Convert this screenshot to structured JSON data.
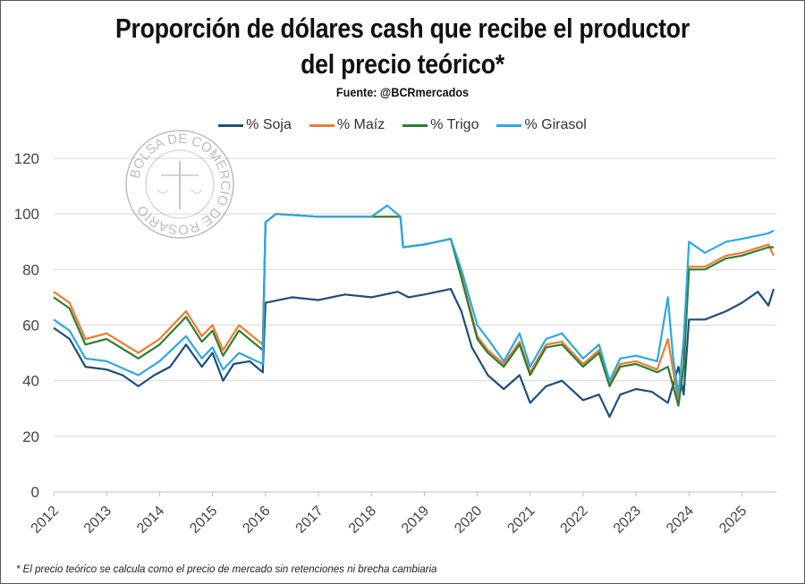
{
  "title_line1": "Proporción de dólares cash que recibe el productor",
  "title_line2": "del precio teórico*",
  "source": "Fuente: @BCRmercados",
  "footnote": "* El precio teórico se calcula como el precio de mercado sin retenciones ni brecha cambiaria",
  "logo_text": "BOLSA DE COMERCIO DE ROSARIO",
  "chart_data": {
    "type": "line",
    "title": "Proporción de dólares cash que recibe el productor del precio teórico*",
    "xlabel": "",
    "ylabel": "",
    "xlim": [
      2012,
      2025.65
    ],
    "ylim": [
      0,
      120
    ],
    "yticks": [
      0,
      20,
      40,
      60,
      80,
      100,
      120
    ],
    "xticks": [
      "2012",
      "2013",
      "2014",
      "2015",
      "2016",
      "2017",
      "2018",
      "2019",
      "2020",
      "2021",
      "2022",
      "2023",
      "2024",
      "2025"
    ],
    "grid": true,
    "legend": "top",
    "series": [
      {
        "name": "% Soja",
        "color": "#1f4e79",
        "points": [
          [
            2012,
            59
          ],
          [
            2012.3,
            55
          ],
          [
            2012.6,
            45
          ],
          [
            2013,
            44
          ],
          [
            2013.3,
            42
          ],
          [
            2013.6,
            38
          ],
          [
            2013.9,
            42
          ],
          [
            2014.2,
            45
          ],
          [
            2014.5,
            53
          ],
          [
            2014.8,
            45
          ],
          [
            2015,
            50
          ],
          [
            2015.2,
            40
          ],
          [
            2015.4,
            46
          ],
          [
            2015.7,
            47
          ],
          [
            2015.95,
            43
          ],
          [
            2016,
            68
          ],
          [
            2016.5,
            70
          ],
          [
            2017,
            69
          ],
          [
            2017.5,
            71
          ],
          [
            2018,
            70
          ],
          [
            2018.5,
            72
          ],
          [
            2018.7,
            70
          ],
          [
            2019,
            71
          ],
          [
            2019.5,
            73
          ],
          [
            2019.7,
            65
          ],
          [
            2019.9,
            52
          ],
          [
            2020.2,
            42
          ],
          [
            2020.5,
            37
          ],
          [
            2020.8,
            42
          ],
          [
            2021,
            32
          ],
          [
            2021.3,
            38
          ],
          [
            2021.6,
            40
          ],
          [
            2022,
            33
          ],
          [
            2022.3,
            35
          ],
          [
            2022.5,
            27
          ],
          [
            2022.7,
            35
          ],
          [
            2023,
            37
          ],
          [
            2023.3,
            36
          ],
          [
            2023.6,
            32
          ],
          [
            2023.8,
            45
          ],
          [
            2023.9,
            35
          ],
          [
            2024,
            62
          ],
          [
            2024.3,
            62
          ],
          [
            2024.7,
            65
          ],
          [
            2025,
            68
          ],
          [
            2025.3,
            72
          ],
          [
            2025.5,
            67
          ],
          [
            2025.6,
            73
          ]
        ]
      },
      {
        "name": "% Maíz",
        "color": "#ed7d31",
        "points": [
          [
            2012,
            72
          ],
          [
            2012.3,
            68
          ],
          [
            2012.6,
            55
          ],
          [
            2013,
            57
          ],
          [
            2013.6,
            50
          ],
          [
            2014,
            55
          ],
          [
            2014.5,
            65
          ],
          [
            2014.8,
            56
          ],
          [
            2015,
            60
          ],
          [
            2015.2,
            51
          ],
          [
            2015.5,
            60
          ],
          [
            2015.95,
            53
          ],
          [
            2016,
            97
          ],
          [
            2016.2,
            100
          ],
          [
            2017,
            99
          ],
          [
            2018,
            99
          ],
          [
            2018.55,
            99
          ],
          [
            2018.6,
            88
          ],
          [
            2019,
            89
          ],
          [
            2019.5,
            91
          ],
          [
            2019.7,
            78
          ],
          [
            2020,
            56
          ],
          [
            2020.2,
            51
          ],
          [
            2020.5,
            46
          ],
          [
            2020.8,
            54
          ],
          [
            2021,
            43
          ],
          [
            2021.3,
            53
          ],
          [
            2021.6,
            54
          ],
          [
            2022,
            46
          ],
          [
            2022.3,
            51
          ],
          [
            2022.5,
            39
          ],
          [
            2022.7,
            46
          ],
          [
            2023,
            47
          ],
          [
            2023.4,
            44
          ],
          [
            2023.6,
            55
          ],
          [
            2023.8,
            32
          ],
          [
            2023.9,
            46
          ],
          [
            2024,
            81
          ],
          [
            2024.3,
            81
          ],
          [
            2024.7,
            85
          ],
          [
            2025,
            86
          ],
          [
            2025.5,
            89
          ],
          [
            2025.6,
            85
          ]
        ]
      },
      {
        "name": "% Trigo",
        "color": "#2e7d32",
        "points": [
          [
            2012,
            70
          ],
          [
            2012.3,
            66
          ],
          [
            2012.6,
            53
          ],
          [
            2013,
            55
          ],
          [
            2013.6,
            48
          ],
          [
            2014,
            53
          ],
          [
            2014.5,
            63
          ],
          [
            2014.8,
            54
          ],
          [
            2015,
            58
          ],
          [
            2015.2,
            49
          ],
          [
            2015.5,
            58
          ],
          [
            2015.95,
            51
          ],
          [
            2016,
            97
          ],
          [
            2016.2,
            100
          ],
          [
            2017,
            99
          ],
          [
            2018,
            99
          ],
          [
            2018.55,
            99
          ],
          [
            2018.6,
            88
          ],
          [
            2019,
            89
          ],
          [
            2019.5,
            91
          ],
          [
            2019.7,
            77
          ],
          [
            2020,
            55
          ],
          [
            2020.2,
            50
          ],
          [
            2020.5,
            45
          ],
          [
            2020.8,
            53
          ],
          [
            2021,
            42
          ],
          [
            2021.3,
            52
          ],
          [
            2021.6,
            53
          ],
          [
            2022,
            45
          ],
          [
            2022.3,
            50
          ],
          [
            2022.5,
            38
          ],
          [
            2022.7,
            45
          ],
          [
            2023,
            46
          ],
          [
            2023.4,
            43
          ],
          [
            2023.6,
            45
          ],
          [
            2023.8,
            31
          ],
          [
            2023.9,
            45
          ],
          [
            2024,
            80
          ],
          [
            2024.3,
            80
          ],
          [
            2024.7,
            84
          ],
          [
            2025,
            85
          ],
          [
            2025.5,
            88
          ],
          [
            2025.6,
            88
          ]
        ]
      },
      {
        "name": "% Girasol",
        "color": "#2ea8de",
        "points": [
          [
            2012,
            62
          ],
          [
            2012.3,
            58
          ],
          [
            2012.6,
            48
          ],
          [
            2013,
            47
          ],
          [
            2013.6,
            42
          ],
          [
            2014,
            47
          ],
          [
            2014.5,
            56
          ],
          [
            2014.8,
            48
          ],
          [
            2015,
            52
          ],
          [
            2015.2,
            44
          ],
          [
            2015.5,
            50
          ],
          [
            2015.95,
            46
          ],
          [
            2016,
            97
          ],
          [
            2016.2,
            100
          ],
          [
            2017,
            99
          ],
          [
            2018,
            99
          ],
          [
            2018.3,
            103
          ],
          [
            2018.55,
            99
          ],
          [
            2018.6,
            88
          ],
          [
            2019,
            89
          ],
          [
            2019.5,
            91
          ],
          [
            2019.7,
            80
          ],
          [
            2020,
            60
          ],
          [
            2020.2,
            55
          ],
          [
            2020.5,
            47
          ],
          [
            2020.8,
            57
          ],
          [
            2021,
            45
          ],
          [
            2021.3,
            55
          ],
          [
            2021.6,
            57
          ],
          [
            2022,
            48
          ],
          [
            2022.3,
            53
          ],
          [
            2022.5,
            40
          ],
          [
            2022.7,
            48
          ],
          [
            2023,
            49
          ],
          [
            2023.4,
            47
          ],
          [
            2023.6,
            70
          ],
          [
            2023.7,
            48
          ],
          [
            2023.8,
            35
          ],
          [
            2023.9,
            55
          ],
          [
            2024,
            90
          ],
          [
            2024.3,
            86
          ],
          [
            2024.7,
            90
          ],
          [
            2025,
            91
          ],
          [
            2025.5,
            93
          ],
          [
            2025.6,
            94
          ]
        ]
      }
    ]
  }
}
